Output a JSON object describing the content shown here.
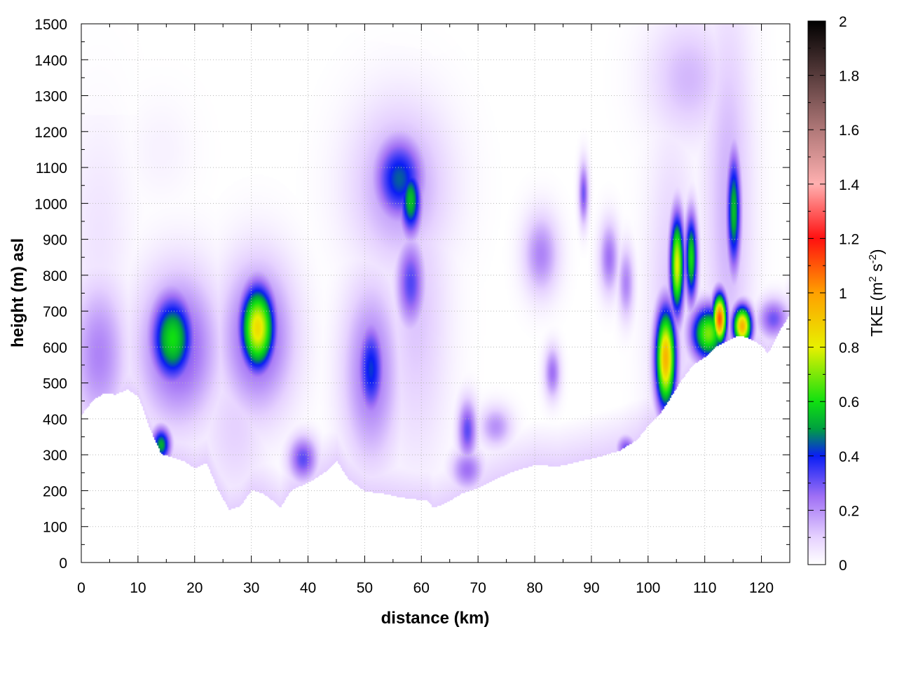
{
  "chart_data": {
    "type": "heatmap",
    "title": "",
    "xlabel": "distance (km)",
    "ylabel": "height (m) asl",
    "xlim": [
      0,
      125
    ],
    "ylim": [
      0,
      1500
    ],
    "x_ticks": [
      0,
      10,
      20,
      30,
      40,
      50,
      60,
      70,
      80,
      90,
      100,
      110,
      120
    ],
    "y_ticks": [
      0,
      100,
      200,
      300,
      400,
      500,
      600,
      700,
      800,
      900,
      1000,
      1100,
      1200,
      1300,
      1400,
      1500
    ],
    "grid": true,
    "colorbar": {
      "label_main": "TKE (m",
      "label_sup1": "2",
      "label_mid": " s",
      "label_sup2": "-2",
      "label_end": ")",
      "range": [
        0,
        2
      ],
      "ticks": [
        0,
        0.2,
        0.4,
        0.6,
        0.8,
        1,
        1.2,
        1.4,
        1.6,
        1.8,
        2
      ],
      "colors": [
        {
          "v": 0.0,
          "c": "#ffffff"
        },
        {
          "v": 0.1,
          "c": "#e6d2ff"
        },
        {
          "v": 0.25,
          "c": "#a070f5"
        },
        {
          "v": 0.4,
          "c": "#0a1ef5"
        },
        {
          "v": 0.5,
          "c": "#00a040"
        },
        {
          "v": 0.6,
          "c": "#10e010"
        },
        {
          "v": 0.8,
          "c": "#e8f000"
        },
        {
          "v": 1.0,
          "c": "#ffa000"
        },
        {
          "v": 1.2,
          "c": "#ff1010"
        },
        {
          "v": 1.4,
          "c": "#ffb0b0"
        },
        {
          "v": 1.6,
          "c": "#b07878"
        },
        {
          "v": 2.0,
          "c": "#000000"
        }
      ]
    },
    "terrain": [
      [
        0,
        420
      ],
      [
        2,
        460
      ],
      [
        4,
        480
      ],
      [
        6,
        475
      ],
      [
        8,
        490
      ],
      [
        10,
        470
      ],
      [
        12,
        380
      ],
      [
        14,
        310
      ],
      [
        16,
        300
      ],
      [
        18,
        290
      ],
      [
        20,
        270
      ],
      [
        22,
        285
      ],
      [
        24,
        210
      ],
      [
        26,
        155
      ],
      [
        28,
        165
      ],
      [
        30,
        210
      ],
      [
        32,
        200
      ],
      [
        34,
        175
      ],
      [
        35,
        160
      ],
      [
        37,
        210
      ],
      [
        40,
        230
      ],
      [
        43,
        260
      ],
      [
        45,
        290
      ],
      [
        47,
        240
      ],
      [
        50,
        205
      ],
      [
        53,
        200
      ],
      [
        56,
        190
      ],
      [
        58,
        185
      ],
      [
        61,
        180
      ],
      [
        62,
        160
      ],
      [
        63,
        165
      ],
      [
        65,
        180
      ],
      [
        67,
        200
      ],
      [
        70,
        215
      ],
      [
        73,
        240
      ],
      [
        76,
        260
      ],
      [
        80,
        280
      ],
      [
        84,
        275
      ],
      [
        88,
        290
      ],
      [
        92,
        305
      ],
      [
        95,
        320
      ],
      [
        98,
        350
      ],
      [
        100,
        390
      ],
      [
        102,
        420
      ],
      [
        104,
        470
      ],
      [
        106,
        520
      ],
      [
        108,
        560
      ],
      [
        110,
        580
      ],
      [
        112,
        610
      ],
      [
        114,
        625
      ],
      [
        116,
        640
      ],
      [
        118,
        630
      ],
      [
        120,
        610
      ],
      [
        121,
        590
      ],
      [
        122,
        615
      ],
      [
        123,
        650
      ],
      [
        125,
        700
      ]
    ],
    "cells": [
      {
        "x": 3,
        "y": 580,
        "sx": 3.5,
        "sy": 150,
        "v": 0.22
      },
      {
        "x": 3,
        "y": 900,
        "sx": 4,
        "sy": 250,
        "v": 0.06
      },
      {
        "x": 14,
        "y": 1150,
        "sx": 4,
        "sy": 100,
        "v": 0.03
      },
      {
        "x": 16,
        "y": 625,
        "sx": 2.8,
        "sy": 90,
        "v": 0.6
      },
      {
        "x": 17,
        "y": 600,
        "sx": 5,
        "sy": 150,
        "v": 0.3
      },
      {
        "x": 14,
        "y": 330,
        "sx": 1.2,
        "sy": 35,
        "v": 0.52
      },
      {
        "x": 31,
        "y": 655,
        "sx": 2.2,
        "sy": 85,
        "v": 0.85
      },
      {
        "x": 31,
        "y": 630,
        "sx": 4.5,
        "sy": 150,
        "v": 0.3
      },
      {
        "x": 27,
        "y": 380,
        "sx": 4,
        "sy": 150,
        "v": 0.1
      },
      {
        "x": 39,
        "y": 290,
        "sx": 1.8,
        "sy": 45,
        "v": 0.32
      },
      {
        "x": 51,
        "y": 540,
        "sx": 1.8,
        "sy": 100,
        "v": 0.42
      },
      {
        "x": 51,
        "y": 530,
        "sx": 3.5,
        "sy": 180,
        "v": 0.25
      },
      {
        "x": 56,
        "y": 1070,
        "sx": 3.2,
        "sy": 85,
        "v": 0.45
      },
      {
        "x": 58,
        "y": 1010,
        "sx": 1.4,
        "sy": 70,
        "v": 0.55
      },
      {
        "x": 56,
        "y": 1050,
        "sx": 6,
        "sy": 160,
        "v": 0.2
      },
      {
        "x": 58,
        "y": 780,
        "sx": 1.8,
        "sy": 90,
        "v": 0.33
      },
      {
        "x": 59,
        "y": 700,
        "sx": 4,
        "sy": 300,
        "v": 0.12
      },
      {
        "x": 68,
        "y": 370,
        "sx": 1.2,
        "sy": 60,
        "v": 0.32
      },
      {
        "x": 68,
        "y": 260,
        "sx": 2,
        "sy": 40,
        "v": 0.25
      },
      {
        "x": 73,
        "y": 380,
        "sx": 2,
        "sy": 40,
        "v": 0.2
      },
      {
        "x": 81,
        "y": 860,
        "sx": 2.2,
        "sy": 80,
        "v": 0.22
      },
      {
        "x": 83,
        "y": 530,
        "sx": 1,
        "sy": 50,
        "v": 0.25
      },
      {
        "x": 88.5,
        "y": 1030,
        "sx": 0.6,
        "sy": 60,
        "v": 0.3
      },
      {
        "x": 93,
        "y": 850,
        "sx": 1.2,
        "sy": 70,
        "v": 0.25
      },
      {
        "x": 96,
        "y": 780,
        "sx": 1,
        "sy": 70,
        "v": 0.22
      },
      {
        "x": 96,
        "y": 320,
        "sx": 1.2,
        "sy": 25,
        "v": 0.3
      },
      {
        "x": 103,
        "y": 570,
        "sx": 1.3,
        "sy": 100,
        "v": 0.95
      },
      {
        "x": 105,
        "y": 830,
        "sx": 0.9,
        "sy": 100,
        "v": 0.8
      },
      {
        "x": 107.5,
        "y": 850,
        "sx": 0.8,
        "sy": 90,
        "v": 0.6
      },
      {
        "x": 104,
        "y": 700,
        "sx": 3,
        "sy": 350,
        "v": 0.12
      },
      {
        "x": 110.5,
        "y": 640,
        "sx": 2.2,
        "sy": 55,
        "v": 0.7
      },
      {
        "x": 112.5,
        "y": 680,
        "sx": 0.9,
        "sy": 50,
        "v": 1.1
      },
      {
        "x": 116.5,
        "y": 660,
        "sx": 1.2,
        "sy": 40,
        "v": 0.95
      },
      {
        "x": 115,
        "y": 980,
        "sx": 0.9,
        "sy": 120,
        "v": 0.55
      },
      {
        "x": 114,
        "y": 1000,
        "sx": 3,
        "sy": 400,
        "v": 0.15
      },
      {
        "x": 107,
        "y": 1350,
        "sx": 5,
        "sy": 120,
        "v": 0.14
      },
      {
        "x": 122,
        "y": 680,
        "sx": 2,
        "sy": 40,
        "v": 0.3
      }
    ]
  }
}
